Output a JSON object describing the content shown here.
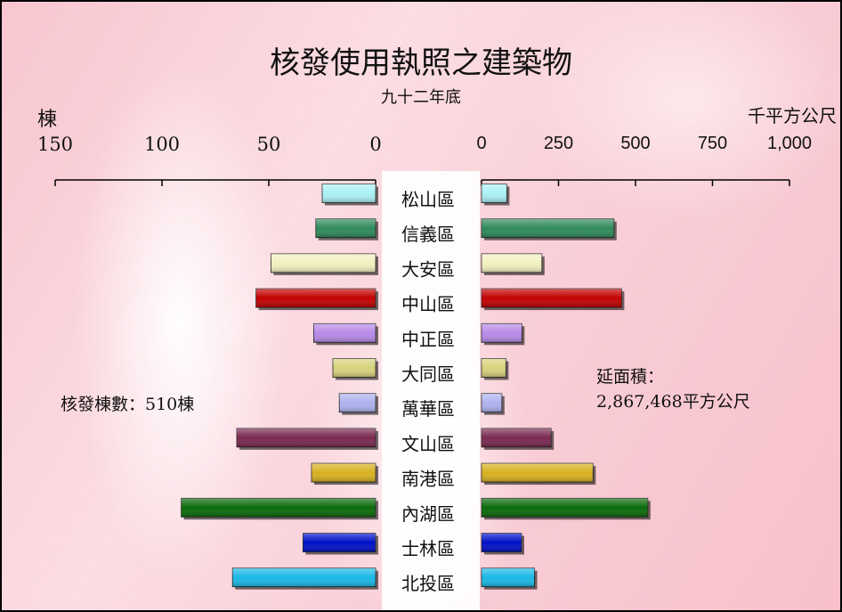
{
  "chart_data": {
    "type": "bar",
    "title": "核發使用執照之建築物",
    "subtitle": "九十二年底",
    "categories": [
      "松山區",
      "信義區",
      "大安區",
      "中山區",
      "中正區",
      "大同區",
      "萬華區",
      "文山區",
      "南港區",
      "內湖區",
      "士林區",
      "北投區"
    ],
    "left_axis": {
      "label": "棟",
      "ticks": [
        150,
        100,
        50,
        0
      ],
      "tick_labels": [
        "150",
        "100",
        "50",
        "0"
      ],
      "range": [
        0,
        150
      ]
    },
    "right_axis": {
      "label": "千平方公尺",
      "ticks": [
        0,
        250,
        500,
        750,
        1000
      ],
      "tick_labels": [
        "0",
        "250",
        "500",
        "750",
        "1,000"
      ],
      "range": [
        0,
        1000
      ]
    },
    "series": [
      {
        "name": "核發棟數",
        "side": "left",
        "values": [
          25,
          28,
          49,
          56,
          29,
          20,
          17,
          65,
          30,
          91,
          34,
          67
        ]
      },
      {
        "name": "延面積",
        "side": "right",
        "values": [
          82,
          430,
          196,
          455,
          131,
          79,
          66,
          226,
          362,
          540,
          130,
          172
        ]
      }
    ],
    "colors": [
      "#aaf0f4",
      "#2f8a5a",
      "#f2f0c0",
      "#c20000",
      "#b88ae8",
      "#d6d27c",
      "#aeb2ee",
      "#7a2850",
      "#d8b020",
      "#0a6a0a",
      "#0010c8",
      "#1ab8e6"
    ],
    "annotations": {
      "left_total": "核發棟數：510棟",
      "right_total_label": "延面積：",
      "right_total_value": "2,867,468平方公尺"
    },
    "grid": false
  }
}
